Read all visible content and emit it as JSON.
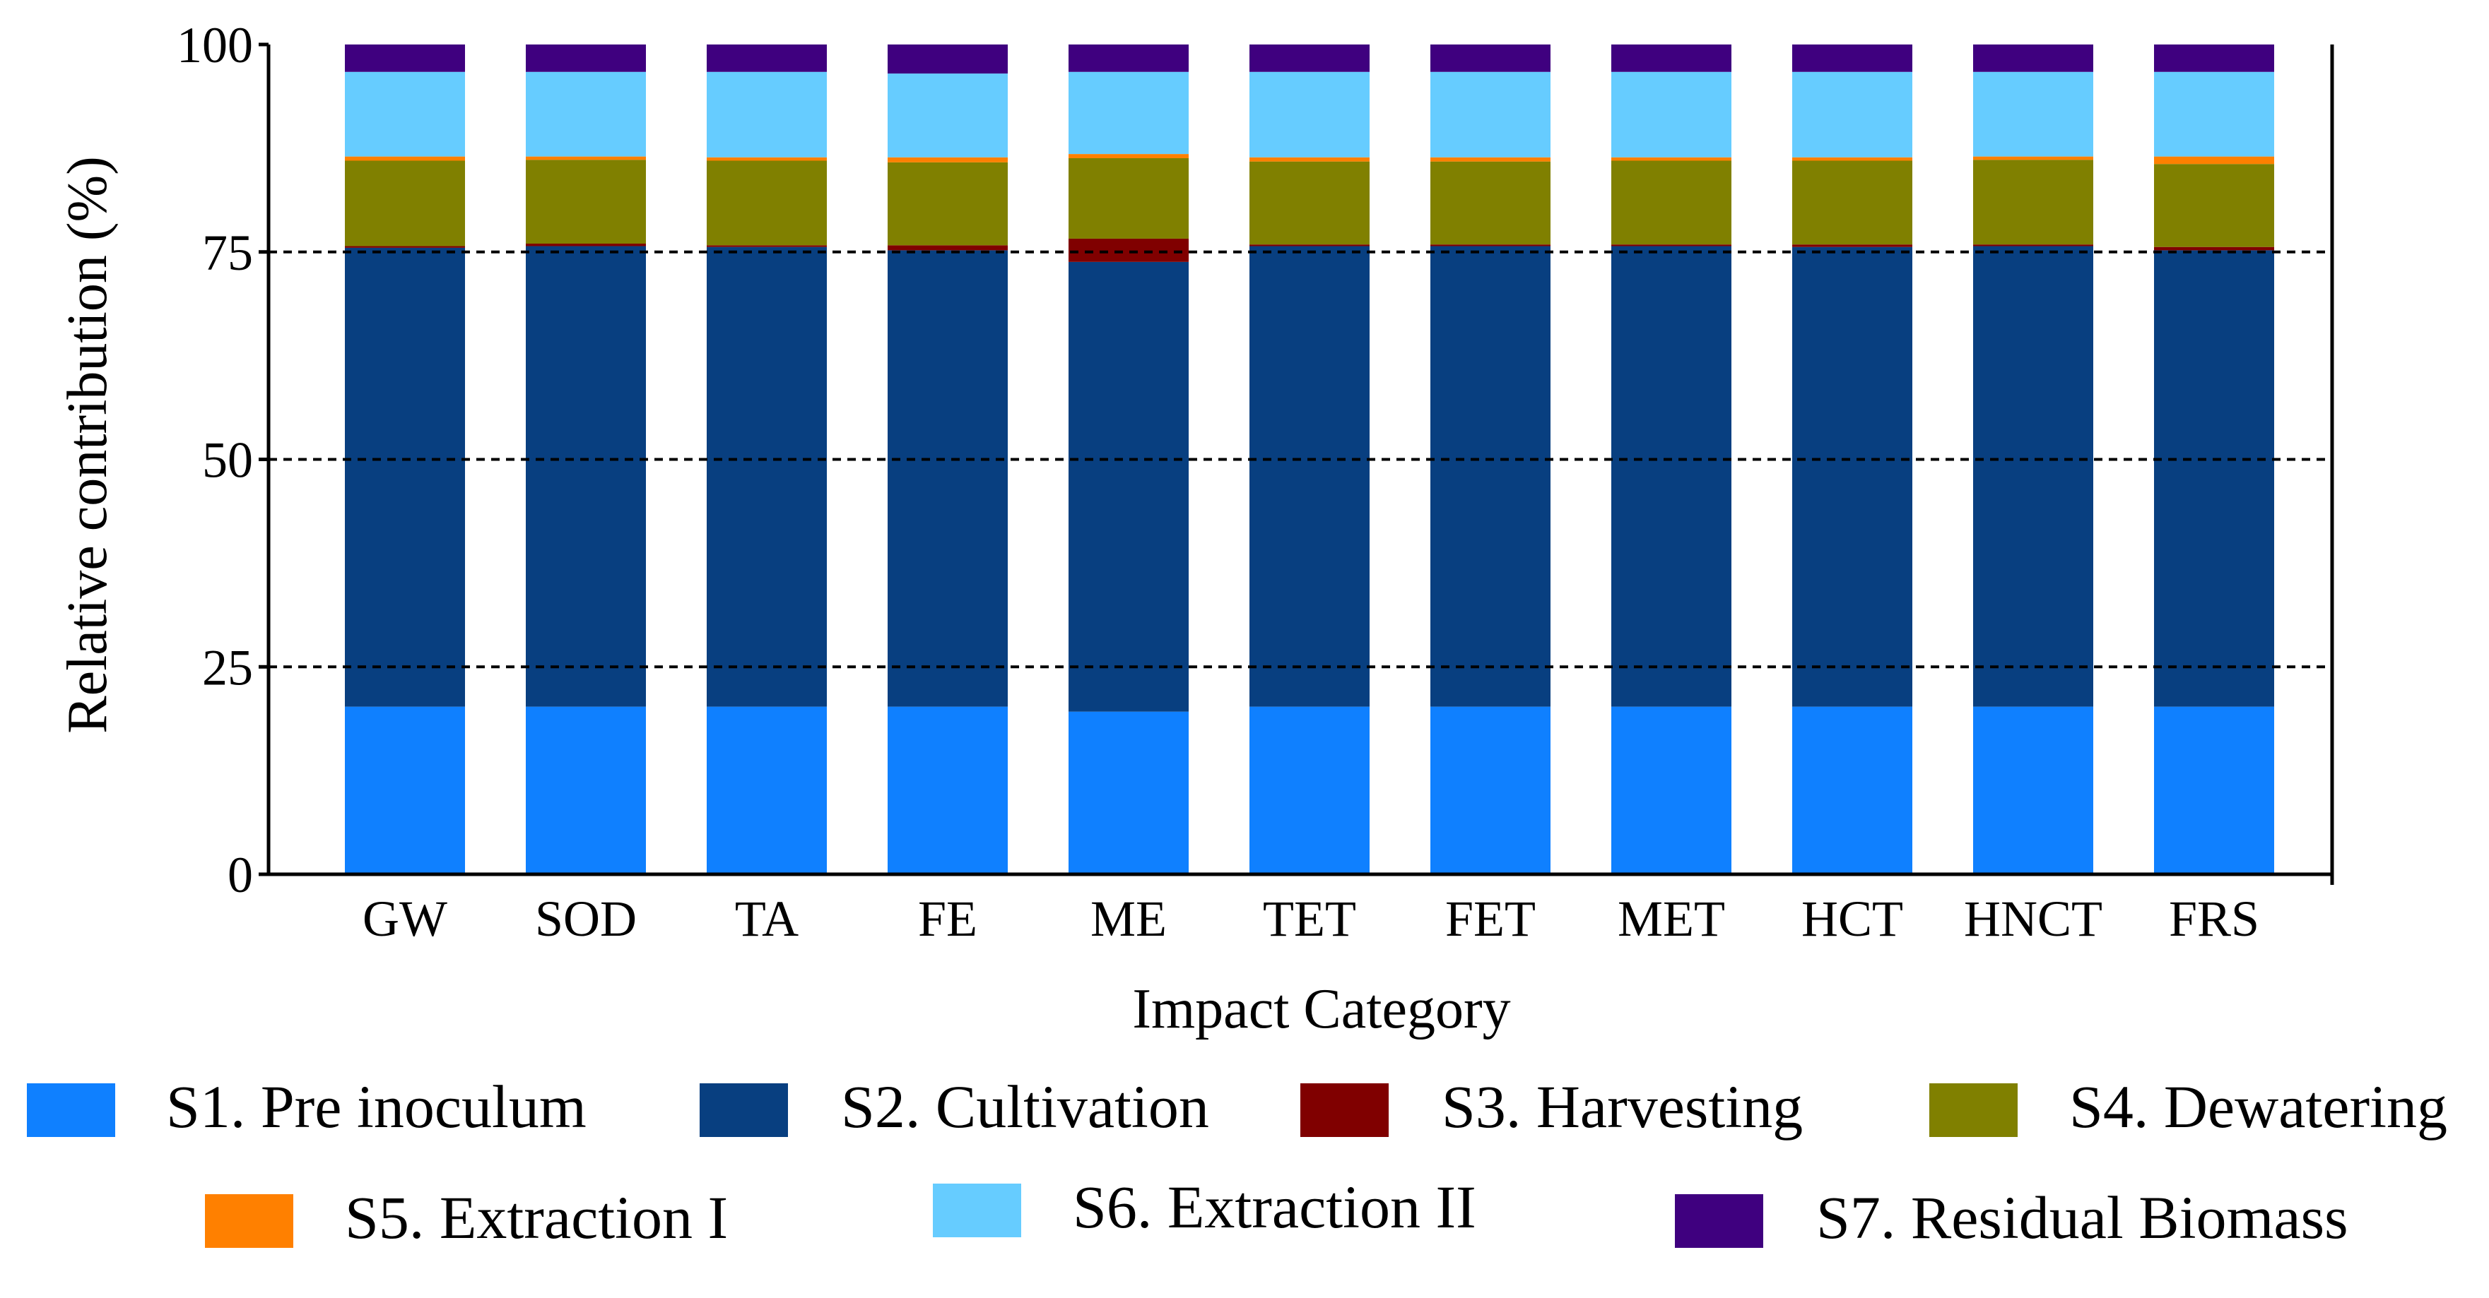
{
  "chart_data": {
    "type": "bar",
    "stacked": true,
    "xlabel": "Impact Category",
    "ylabel": "Relative contribution (%)",
    "ylim": [
      0,
      100
    ],
    "yticks": [
      0,
      25,
      50,
      75,
      100
    ],
    "gridlines": [
      25,
      50,
      75
    ],
    "categories": [
      "GW",
      "SOD",
      "TA",
      "FE",
      "ME",
      "TET",
      "FET",
      "MET",
      "HCT",
      "HNCT",
      "FRS"
    ],
    "series": [
      {
        "name": "S1. Pre inoculum",
        "color": "#0f80ff",
        "values": [
          20.2,
          20.2,
          20.2,
          20.2,
          19.6,
          20.2,
          20.2,
          20.2,
          20.2,
          20.2,
          20.2
        ]
      },
      {
        "name": "S2. Cultivation",
        "color": "#083f80",
        "values": [
          55.3,
          55.5,
          55.4,
          55.0,
          54.2,
          55.5,
          55.5,
          55.5,
          55.4,
          55.5,
          55.0
        ]
      },
      {
        "name": "S3. Harvesting",
        "color": "#800000",
        "values": [
          0.2,
          0.3,
          0.2,
          0.6,
          2.8,
          0.2,
          0.2,
          0.2,
          0.3,
          0.2,
          0.4
        ]
      },
      {
        "name": "S4. Dewatering",
        "color": "#808000",
        "values": [
          10.3,
          10.1,
          10.2,
          10.0,
          9.7,
          10.0,
          10.0,
          10.1,
          10.1,
          10.2,
          10.0
        ]
      },
      {
        "name": "S5. Extraction I",
        "color": "#ff8000",
        "values": [
          0.5,
          0.4,
          0.4,
          0.6,
          0.5,
          0.5,
          0.5,
          0.4,
          0.4,
          0.4,
          0.9
        ]
      },
      {
        "name": "S6. Extraction II",
        "color": "#66ccff",
        "values": [
          10.2,
          10.2,
          10.3,
          10.1,
          9.9,
          10.3,
          10.3,
          10.3,
          10.3,
          10.2,
          10.2
        ]
      },
      {
        "name": "S7. Residual Biomass",
        "color": "#3f007f",
        "values": [
          3.3,
          3.3,
          3.3,
          3.5,
          3.3,
          3.3,
          3.3,
          3.3,
          3.3,
          3.3,
          3.3
        ]
      }
    ],
    "legend": "bottom"
  }
}
